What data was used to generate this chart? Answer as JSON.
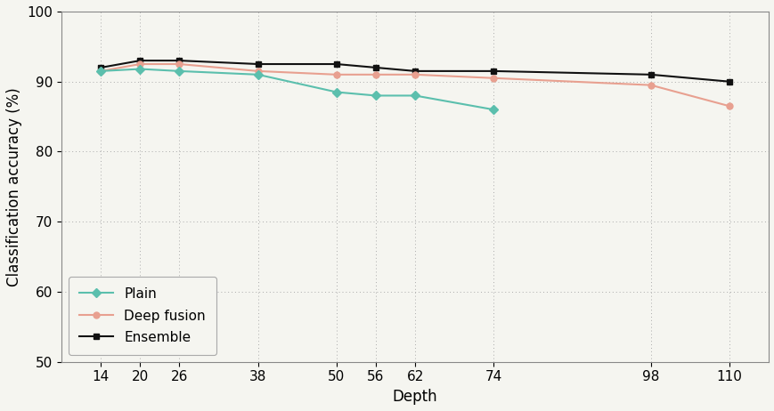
{
  "plain_x": [
    14,
    20,
    26,
    38,
    50,
    56,
    62,
    74
  ],
  "plain_y": [
    91.5,
    91.8,
    91.5,
    91.0,
    88.5,
    88.0,
    88.0,
    86.0
  ],
  "deep_fusion_x": [
    14,
    20,
    26,
    38,
    50,
    56,
    62,
    74,
    98,
    110
  ],
  "deep_fusion_y": [
    91.5,
    92.5,
    92.5,
    91.5,
    91.0,
    91.0,
    91.0,
    90.5,
    89.5,
    86.5
  ],
  "ensemble_x": [
    14,
    20,
    26,
    38,
    50,
    56,
    62,
    74,
    98,
    110
  ],
  "ensemble_y": [
    92.0,
    93.0,
    93.0,
    92.5,
    92.5,
    92.0,
    91.5,
    91.5,
    91.0,
    90.0
  ],
  "plain_color": "#5bbfad",
  "deep_fusion_color": "#e8a090",
  "ensemble_color": "#111111",
  "plain_label": "Plain",
  "deep_fusion_label": "Deep fusion",
  "ensemble_label": "Ensemble",
  "xlabel": "Depth",
  "ylabel": "Classification accuracy (%)",
  "ylim": [
    50,
    100
  ],
  "yticks": [
    50,
    60,
    70,
    80,
    90,
    100
  ],
  "xlim": [
    8,
    116
  ],
  "xticks": [
    14,
    20,
    26,
    38,
    50,
    56,
    62,
    74,
    98,
    110
  ],
  "background_color": "#f5f5f0",
  "grid_color": "#aaaaaa",
  "label_fontsize": 12,
  "tick_fontsize": 11,
  "legend_fontsize": 11
}
